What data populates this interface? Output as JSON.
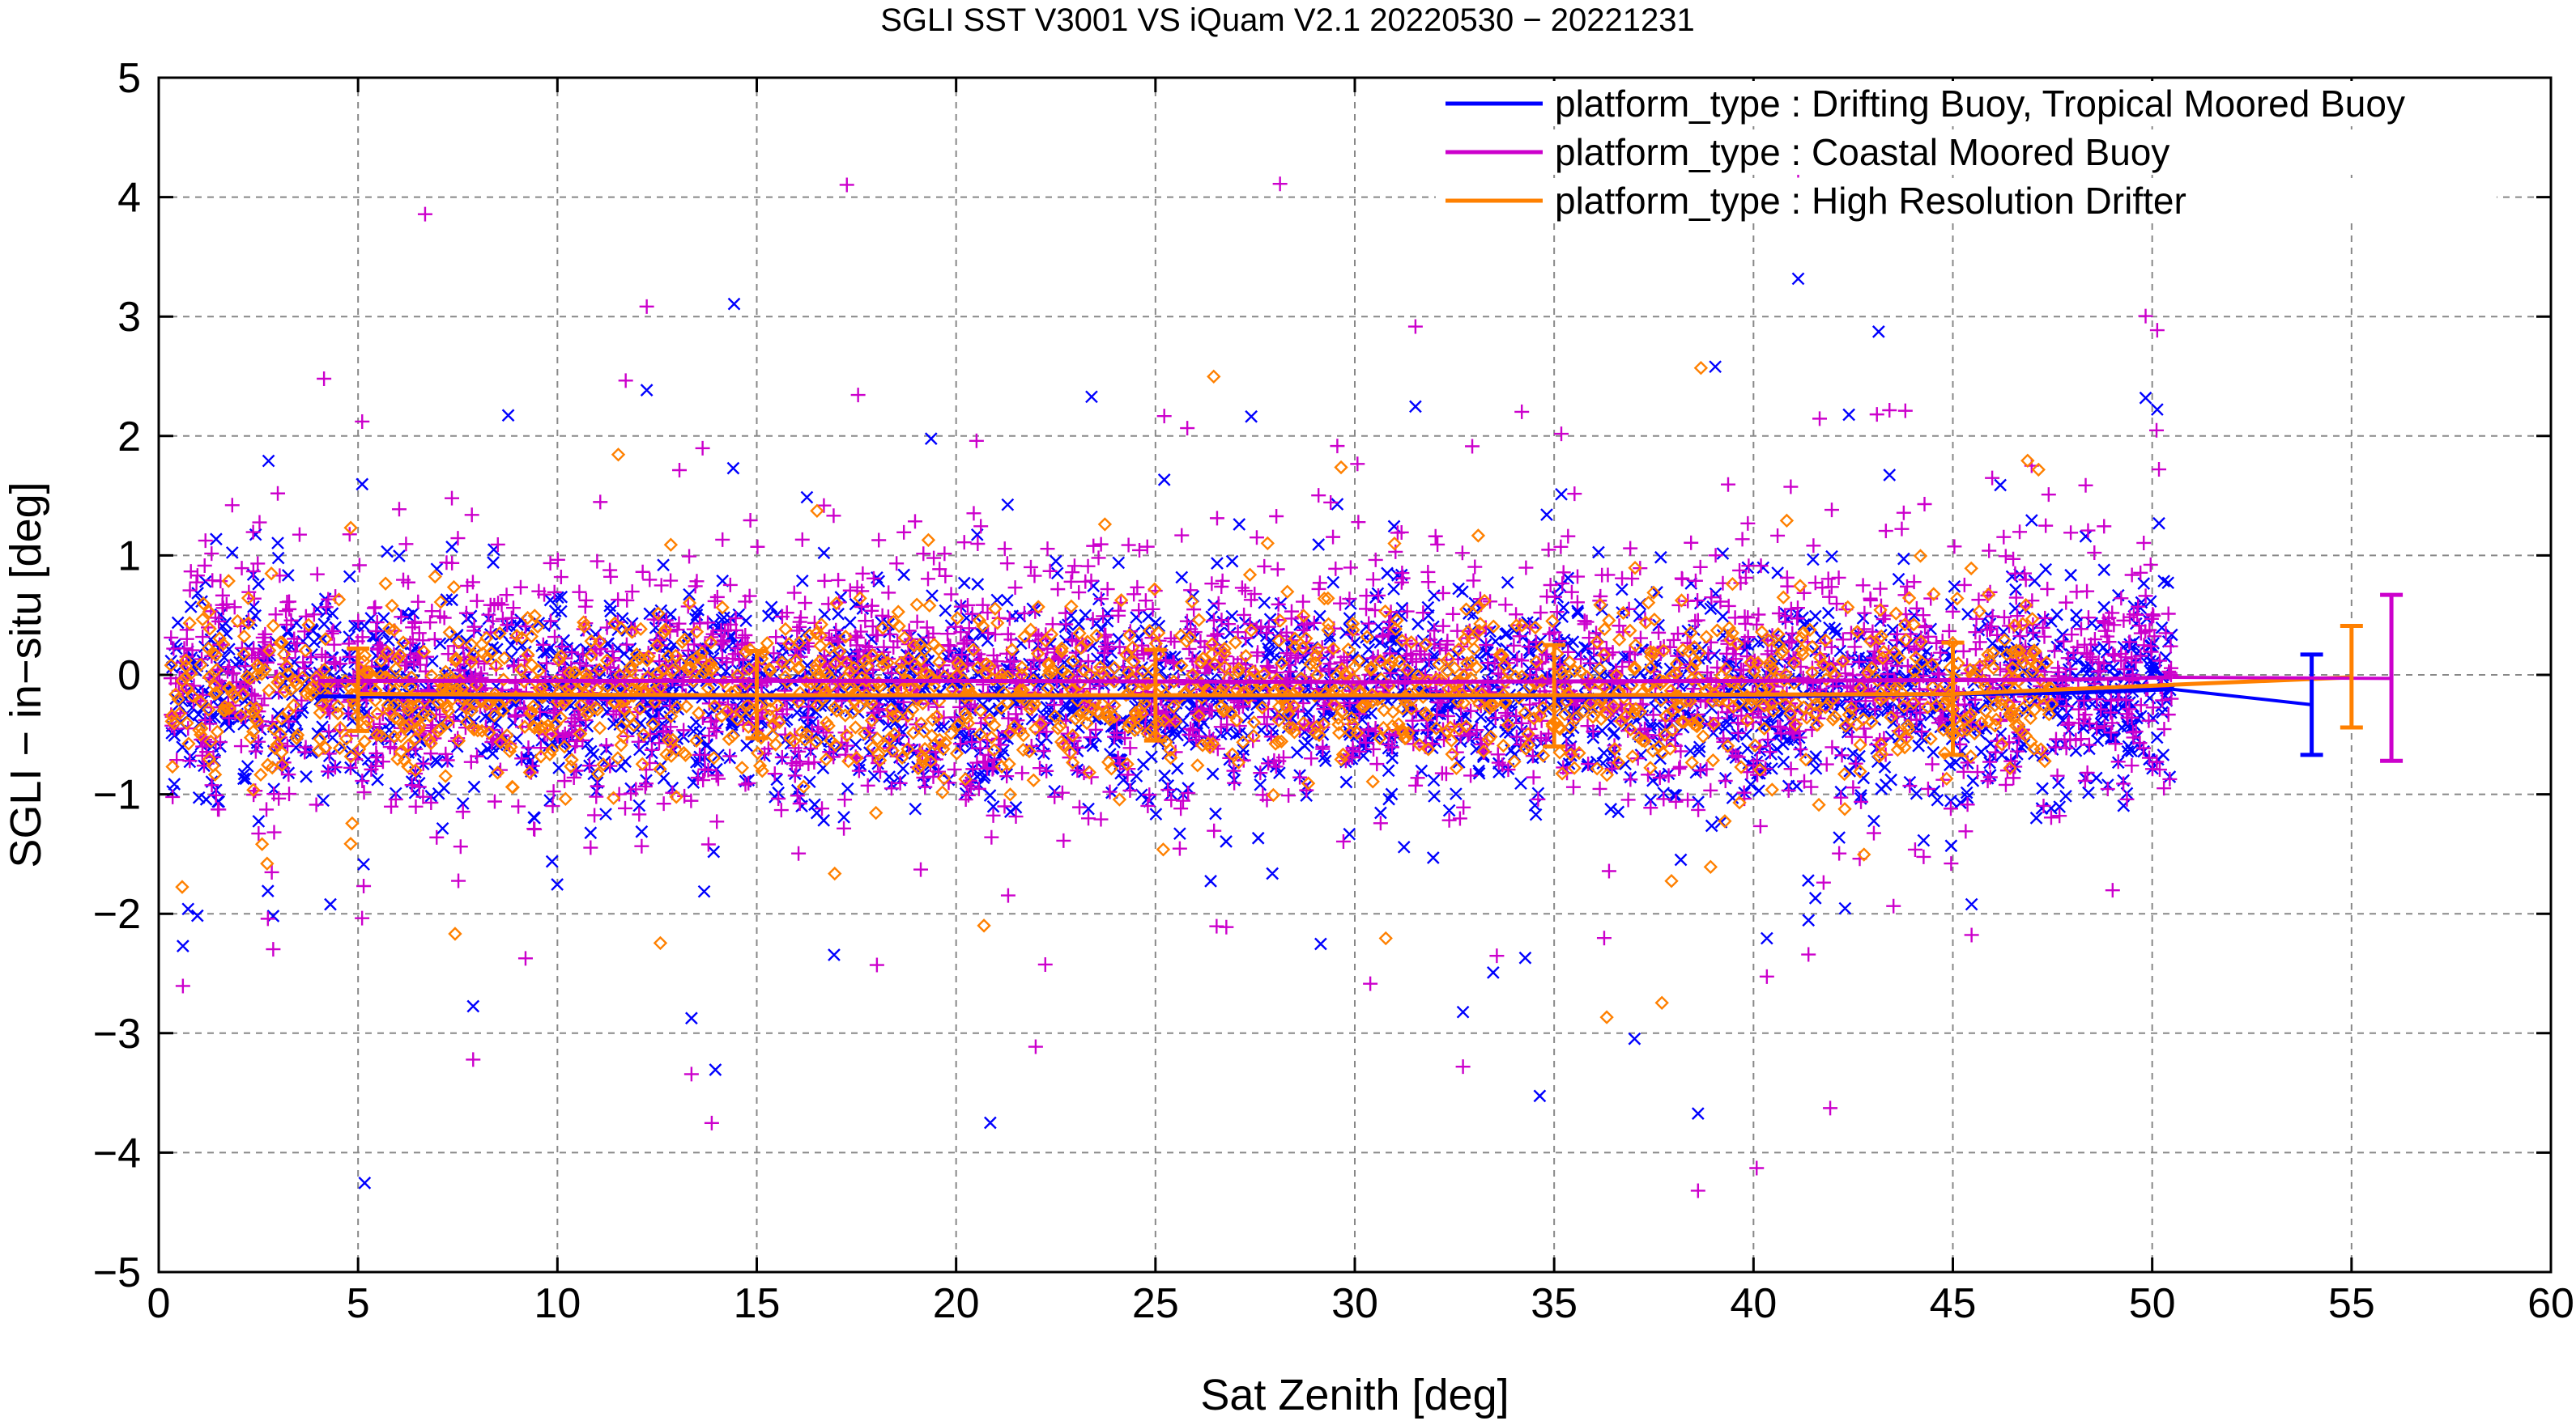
{
  "chart_data": {
    "type": "scatter",
    "title": "SGLI SST V3001 VS iQuam V2.1 20220530 − 20221231",
    "xlabel": "Sat Zenith [deg]",
    "ylabel": "SGLI − in−situ [deg]",
    "xlim": [
      0,
      60
    ],
    "ylim": [
      -5,
      5
    ],
    "x_ticks": [
      0,
      5,
      10,
      15,
      20,
      25,
      30,
      35,
      40,
      45,
      50,
      55,
      60
    ],
    "y_ticks": [
      -5,
      -4,
      -3,
      -2,
      -1,
      0,
      1,
      2,
      3,
      4,
      5
    ],
    "x_tick_labels": [
      "0",
      "5",
      "10",
      "15",
      "20",
      "25",
      "30",
      "35",
      "40",
      "45",
      "50",
      "55",
      "60"
    ],
    "y_tick_labels": [
      "−5",
      "−4",
      "−3",
      "−2",
      "−1",
      "0",
      "1",
      "2",
      "3",
      "4",
      "5"
    ],
    "grid": true,
    "legend_position": "top-right",
    "series": [
      {
        "name": "platform_type : Drifting Buoy, Tropical Moored Buoy",
        "color": "#0000ff",
        "marker": "x",
        "point_density": {
          "x_range": [
            0.3,
            50.5
          ],
          "center": -0.18,
          "spread": 0.45
        },
        "mean_line": {
          "x": [
            4,
            10,
            20,
            30,
            40,
            48,
            50.5
          ],
          "y": [
            -0.18,
            -0.19,
            -0.19,
            -0.19,
            -0.18,
            -0.15,
            -0.12
          ]
        },
        "summary_errorbar": {
          "x": 54,
          "mean": -0.25,
          "low": -0.67,
          "high": 0.17
        }
      },
      {
        "name": "platform_type : Coastal Moored Buoy",
        "color": "#cc00cc",
        "marker": "+",
        "point_density": {
          "x_range": [
            0.3,
            50.5
          ],
          "center": -0.05,
          "spread": 0.55
        },
        "mean_line": {
          "x": [
            4,
            10,
            20,
            30,
            40,
            48,
            50.5
          ],
          "y": [
            -0.05,
            -0.05,
            -0.05,
            -0.06,
            -0.05,
            -0.04,
            -0.02
          ]
        },
        "summary_errorbar": {
          "x": 56,
          "mean": -0.03,
          "low": -0.72,
          "high": 0.67
        }
      },
      {
        "name": "platform_type : High Resolution Drifter",
        "color": "#ff8000",
        "marker": "diamond",
        "point_density": {
          "x_range": [
            0.3,
            47.5
          ],
          "center": -0.15,
          "spread": 0.35
        },
        "mean_line": {
          "x": [
            5,
            15,
            25,
            35,
            45,
            55
          ],
          "y": [
            -0.16,
            -0.17,
            -0.17,
            -0.17,
            -0.16,
            -0.02
          ]
        },
        "errorbars": [
          {
            "x": 5,
            "mean": -0.16,
            "low": -0.47,
            "high": 0.22
          },
          {
            "x": 15,
            "mean": -0.17,
            "low": -0.53,
            "high": 0.2
          },
          {
            "x": 25,
            "mean": -0.17,
            "low": -0.55,
            "high": 0.21
          },
          {
            "x": 35,
            "mean": -0.17,
            "low": -0.6,
            "high": 0.25
          },
          {
            "x": 45,
            "mean": -0.16,
            "low": -0.67,
            "high": 0.27
          },
          {
            "x": 55,
            "mean": -0.02,
            "low": -0.44,
            "high": 0.41
          }
        ]
      }
    ]
  }
}
